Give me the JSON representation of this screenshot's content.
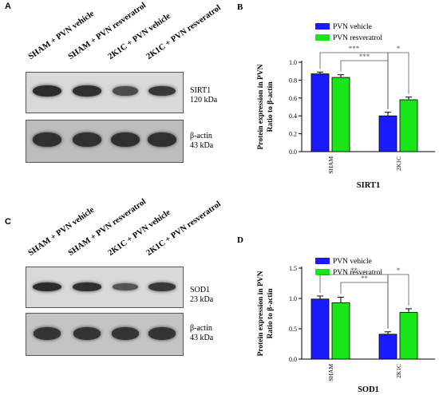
{
  "panels": {
    "A": {
      "letter": "A",
      "lanes": [
        "SHAM + PVN vehicle",
        "SHAM + PVN resveratrol",
        "2K1C + PVN vehicle",
        "2K1C + PVN resveratrol"
      ],
      "blot_top_protein": "SIRT1",
      "blot_top_size": "120 kDa",
      "blot_bottom_protein": "β-actin",
      "blot_bottom_size": "43 kDa",
      "top_band_intensity": [
        0.95,
        0.9,
        0.55,
        0.8
      ],
      "bottom_band_intensity": [
        0.9,
        0.9,
        0.9,
        0.9
      ]
    },
    "C": {
      "letter": "C",
      "lanes": [
        "SHAM + PVN vehicle",
        "SHAM + PVN resveratrol",
        "2K1C + PVN vehicle",
        "2K1C + PVN resveratrol"
      ],
      "blot_top_protein": "SOD1",
      "blot_top_size": "23 kDa",
      "blot_bottom_protein": "β-actin",
      "blot_bottom_size": "43 kDa",
      "top_band_intensity": [
        0.95,
        0.9,
        0.45,
        0.8
      ],
      "bottom_band_intensity": [
        0.85,
        0.85,
        0.85,
        0.85
      ]
    }
  },
  "chart_data": [
    {
      "letter": "B",
      "type": "bar",
      "title": "",
      "xlabel": "SIRT1",
      "ylabel": "Protein expression in PVN\nRatio to β-actin",
      "categories": [
        "SHAM",
        "2K1C"
      ],
      "series": [
        {
          "name": "PVN vehicle",
          "color": "#1a1aff",
          "values": [
            0.87,
            0.4
          ],
          "errors": [
            0.02,
            0.04
          ]
        },
        {
          "name": "PVN resveratrol",
          "color": "#19e619",
          "values": [
            0.83,
            0.58
          ],
          "errors": [
            0.03,
            0.03
          ]
        }
      ],
      "ylim": [
        0,
        1.0
      ],
      "yticks": [
        "0.0",
        "0.2",
        "0.4",
        "0.6",
        "0.8",
        "1.0"
      ],
      "significance": [
        "***",
        "***",
        "*"
      ],
      "legend": "top-right"
    },
    {
      "letter": "D",
      "type": "bar",
      "title": "",
      "xlabel": "SOD1",
      "ylabel": "Protein expression in PVN\nRatio to β-actin",
      "categories": [
        "SHAM",
        "2K1C"
      ],
      "series": [
        {
          "name": "PVN vehicle",
          "color": "#1a1aff",
          "values": [
            0.99,
            0.41
          ],
          "errors": [
            0.05,
            0.04
          ]
        },
        {
          "name": "PVN resveratrol",
          "color": "#19e619",
          "values": [
            0.93,
            0.77
          ],
          "errors": [
            0.09,
            0.06
          ]
        }
      ],
      "ylim": [
        0,
        1.5
      ],
      "yticks": [
        "0.0",
        "0.5",
        "1.0",
        "1.5"
      ],
      "significance": [
        "**",
        "**",
        "*"
      ],
      "legend": "top-right"
    }
  ]
}
